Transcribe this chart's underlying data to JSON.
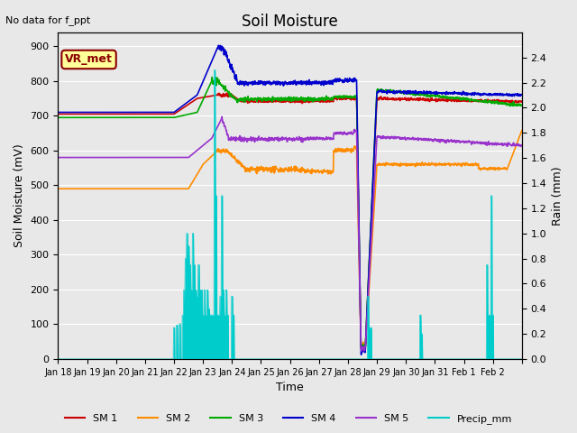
{
  "title": "Soil Moisture",
  "xlabel": "Time",
  "ylabel_left": "Soil Moisture (mV)",
  "ylabel_right": "Rain (mm)",
  "note": "No data for f_ppt",
  "vr_met_label": "VR_met",
  "ylim_left": [
    0,
    940
  ],
  "ylim_right": [
    0,
    2.6
  ],
  "yticks_left": [
    0,
    100,
    200,
    300,
    400,
    500,
    600,
    700,
    800,
    900
  ],
  "yticks_right": [
    0.0,
    0.2,
    0.4,
    0.6,
    0.8,
    1.0,
    1.2,
    1.4,
    1.6,
    1.8,
    2.0,
    2.2,
    2.4
  ],
  "bg_color": "#e8e8e8",
  "colors": {
    "SM1": "#cc0000",
    "SM2": "#ff8c00",
    "SM3": "#00aa00",
    "SM4": "#0000cc",
    "SM5": "#9933cc",
    "Precip": "#00cccc"
  },
  "xtick_positions": [
    0,
    1,
    2,
    3,
    4,
    5,
    6,
    7,
    8,
    9,
    10,
    11,
    12,
    13,
    14,
    15,
    16
  ],
  "xtick_labels": [
    "Jan 18",
    "Jan 19",
    "Jan 20",
    "Jan 21",
    "Jan 22",
    "Jan 23",
    "Jan 24",
    "Jan 25",
    "Jan 26",
    "Jan 27",
    "Jan 28",
    "Jan 29",
    "Jan 30",
    "Jan 31",
    "Feb 1",
    "Feb 2",
    ""
  ],
  "n_days": 16
}
